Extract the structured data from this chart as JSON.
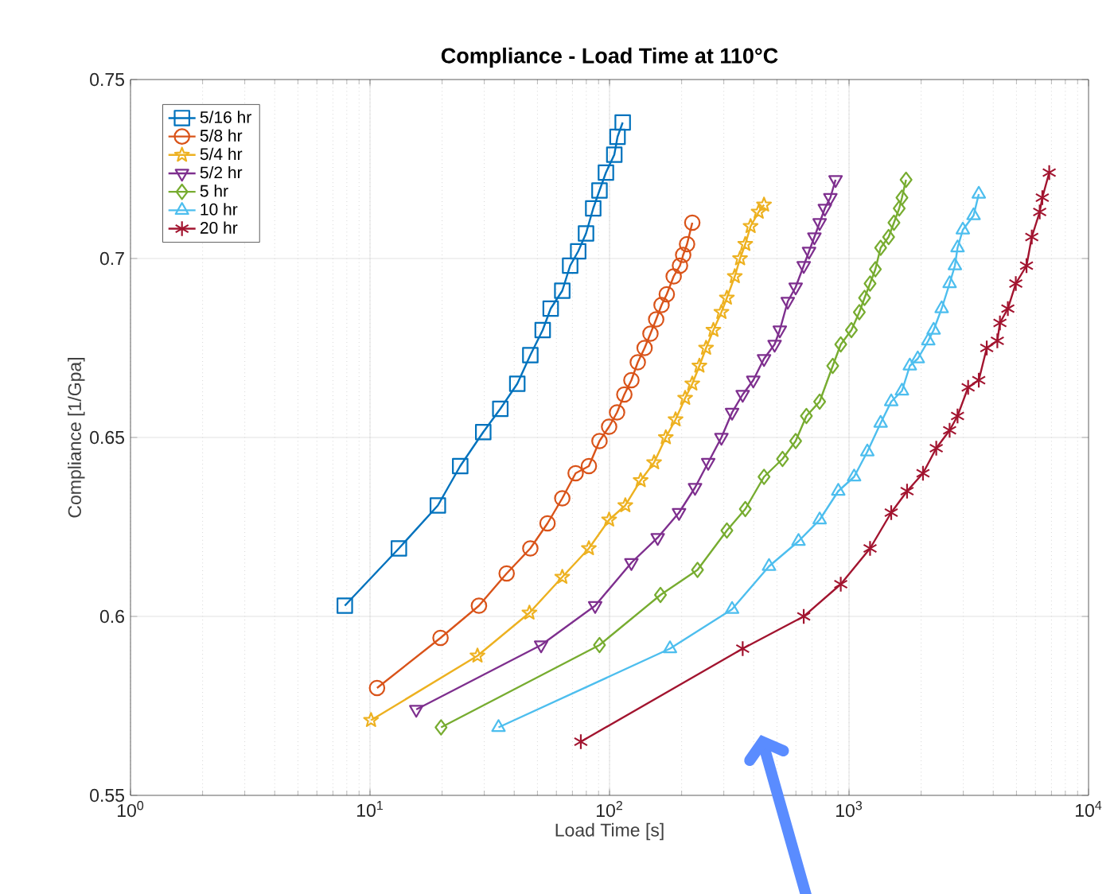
{
  "chart_data": {
    "type": "line",
    "title": "Compliance - Load Time at 110°C",
    "xlabel": "Load Time [s]",
    "ylabel": "Compliance [1/Gpa]",
    "log": "x",
    "grid": true,
    "legend": "top left",
    "xlim": [
      1,
      10000
    ],
    "ylim": [
      0.55,
      0.75
    ],
    "xticks": [
      {
        "value": 1,
        "label": "10$^{0}$"
      },
      {
        "value": 10,
        "label": "10$^{1}$"
      },
      {
        "value": 100,
        "label": "10$^{2}$"
      },
      {
        "value": 1000,
        "label": "10$^{3}$"
      },
      {
        "value": 10000,
        "label": "10$^{4}$"
      }
    ],
    "yticks": [
      0.55,
      0.6,
      0.65,
      0.7,
      0.75
    ],
    "series": [
      {
        "name": "5/16 hr",
        "color": "#0072bd",
        "marker": "square",
        "x": [
          7.85,
          13.2,
          19.2,
          23.8,
          29.7,
          35.0,
          41.2,
          46.7,
          52.6,
          56.8,
          63.5,
          68.5,
          74.0,
          79.8,
          85.5,
          90.8,
          96.6,
          104.7,
          108,
          113.5
        ],
        "values": [
          0.603,
          0.619,
          0.631,
          0.642,
          0.6515,
          0.658,
          0.665,
          0.673,
          0.68,
          0.686,
          0.691,
          0.698,
          0.702,
          0.707,
          0.714,
          0.719,
          0.724,
          0.729,
          0.734,
          0.738
        ]
      },
      {
        "name": "5/8 hr",
        "color": "#d95319",
        "marker": "circle",
        "x": [
          10.7,
          19.7,
          28.5,
          37.2,
          46.7,
          55.1,
          63.5,
          72.2,
          82.0,
          90.8,
          99.6,
          107.5,
          115.3,
          123.4,
          131.2,
          140.1,
          148.2,
          156.6,
          164.9,
          173.4,
          185.3,
          196.9,
          203.0,
          210.7,
          221.6
        ],
        "values": [
          0.58,
          0.594,
          0.603,
          0.612,
          0.619,
          0.626,
          0.633,
          0.64,
          0.642,
          0.649,
          0.653,
          0.657,
          0.662,
          0.666,
          0.671,
          0.675,
          0.679,
          0.683,
          0.687,
          0.69,
          0.695,
          0.698,
          0.701,
          0.704,
          0.71
        ]
      },
      {
        "name": "5/4 hr",
        "color": "#edb120",
        "marker": "star",
        "x": [
          10.1,
          28.1,
          46.3,
          63.5,
          82.0,
          99.6,
          116.4,
          134.9,
          153.5,
          171.8,
          188.7,
          206.9,
          221.6,
          237.3,
          253.0,
          271.5,
          293.2,
          309.0,
          333.4,
          350.8,
          368.9,
          388.2,
          419.4,
          441.6
        ],
        "values": [
          0.571,
          0.589,
          0.601,
          0.611,
          0.619,
          0.627,
          0.631,
          0.638,
          0.643,
          0.65,
          0.655,
          0.661,
          0.665,
          0.67,
          0.675,
          0.68,
          0.685,
          0.689,
          0.695,
          0.7,
          0.704,
          0.709,
          0.713,
          0.715
        ]
      },
      {
        "name": "5/2 hr",
        "color": "#7e2f8e",
        "marker": "triangle-down",
        "x": [
          15.6,
          51.8,
          87.1,
          123.4,
          158.9,
          195.1,
          227.5,
          258.2,
          293.2,
          324.8,
          359.7,
          398.3,
          441.6,
          488.9,
          514.0,
          554.8,
          598.6,
          646.9,
          680.8,
          716.8,
          753.9,
          792.6,
          835.6,
          878.4
        ],
        "values": [
          0.574,
          0.592,
          0.603,
          0.615,
          0.622,
          0.629,
          0.636,
          0.643,
          0.65,
          0.657,
          0.662,
          0.666,
          0.672,
          0.676,
          0.68,
          0.688,
          0.692,
          0.698,
          0.702,
          0.706,
          0.71,
          0.714,
          0.717,
          0.722
        ]
      },
      {
        "name": "5 hr",
        "color": "#77ac30",
        "marker": "diamond",
        "x": [
          19.8,
          90.8,
          163.2,
          233.0,
          309.0,
          368.9,
          441.6,
          527.6,
          598.6,
          663.7,
          753.9,
          855.0,
          923.5,
          1023,
          1104,
          1161,
          1224,
          1288,
          1355,
          1463,
          1540,
          1620,
          1663,
          1730
        ],
        "values": [
          0.569,
          0.592,
          0.606,
          0.613,
          0.624,
          0.63,
          0.639,
          0.644,
          0.649,
          0.656,
          0.66,
          0.67,
          0.676,
          0.68,
          0.685,
          0.689,
          0.693,
          0.697,
          0.703,
          0.706,
          0.71,
          0.714,
          0.717,
          0.722
        ]
      },
      {
        "name": "10 hr",
        "color": "#4dbeee",
        "marker": "triangle",
        "x": [
          34.4,
          178.8,
          324.8,
          463.4,
          615.2,
          753.9,
          901.6,
          1050,
          1192,
          1355,
          1500,
          1663,
          1794,
          1936,
          2142,
          2255,
          2436,
          2630,
          2767,
          2838,
          2986,
          3311,
          3481
        ],
        "values": [
          0.569,
          0.591,
          0.602,
          0.614,
          0.621,
          0.627,
          0.635,
          0.639,
          0.646,
          0.654,
          0.66,
          0.663,
          0.67,
          0.672,
          0.677,
          0.68,
          0.686,
          0.693,
          0.698,
          0.703,
          0.708,
          0.712,
          0.718
        ]
      },
      {
        "name": "20 hr",
        "color": "#a2142f",
        "marker": "cross",
        "x": [
          75.9,
          359.7,
          646.9,
          923.5,
          1224,
          1500,
          1747,
          2036,
          2313,
          2630,
          2838,
          3142,
          3481,
          3758,
          4161,
          4266,
          4603,
          4969,
          5508,
          5794,
          6252,
          6412,
          6852
        ],
        "values": [
          0.565,
          0.591,
          0.6,
          0.609,
          0.619,
          0.629,
          0.635,
          0.64,
          0.647,
          0.652,
          0.656,
          0.664,
          0.666,
          0.675,
          0.677,
          0.682,
          0.686,
          0.693,
          0.698,
          0.706,
          0.713,
          0.717,
          0.724
        ]
      }
    ]
  }
}
